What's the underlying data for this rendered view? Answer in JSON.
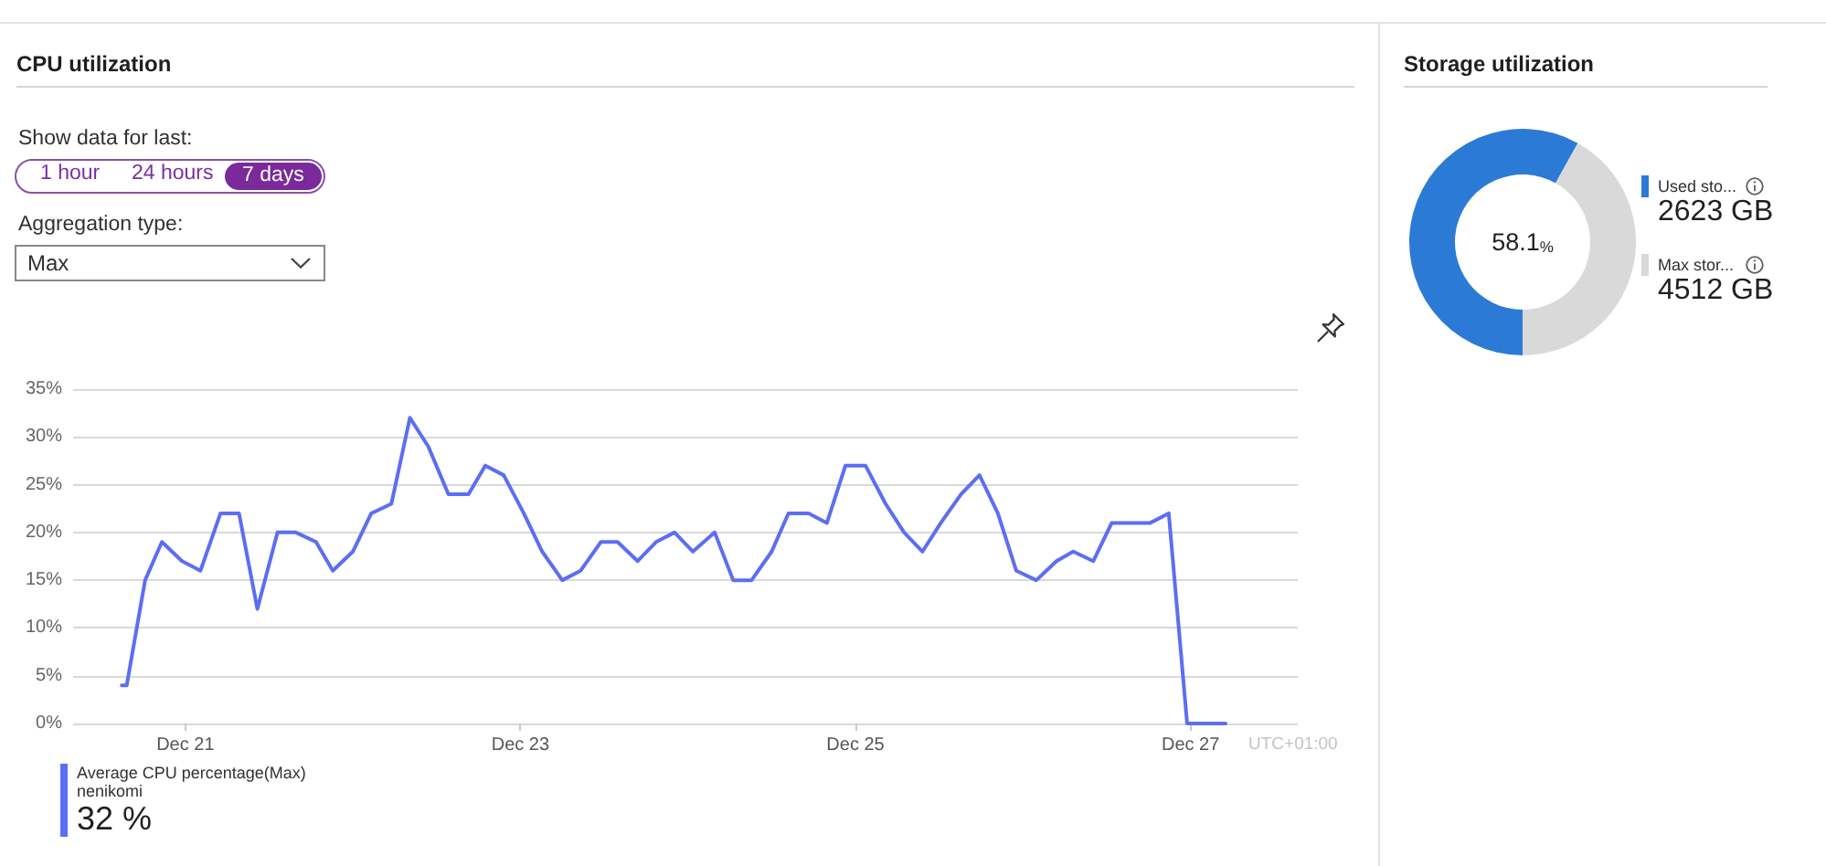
{
  "chart_data": [
    {
      "type": "line",
      "title": "CPU utilization",
      "legend_title": "Average CPU percentage(Max)",
      "x": [
        "--12-20T14:53",
        "--12-20T15:36",
        "--12-20T18:14",
        "--12-20T20:38",
        "--12-20T23:31",
        "--12-21T02:10",
        "--12-21T05:02",
        "--12-21T07:41",
        "--12-21T10:19",
        "--12-21T13:12",
        "--12-21T15:50",
        "--12-21T18:43",
        "--12-21T21:07",
        "--12-22T00:00",
        "--12-22T02:38",
        "--12-22T05:31",
        "--12-22T08:10",
        "--12-22T10:48",
        "--12-22T13:41",
        "--12-22T16:34",
        "--12-22T18:58",
        "--12-22T21:36",
        "--12-23T00:29",
        "--12-23T03:07",
        "--12-23T06:00",
        "--12-23T08:38",
        "--12-23T11:31",
        "--12-23T13:55",
        "--12-23T16:48",
        "--12-23T19:26",
        "--12-23T22:05",
        "--12-24T00:43",
        "--12-24T03:50",
        "--12-24T06:29",
        "--12-24T09:07",
        "--12-24T12:00",
        "--12-24T14:24",
        "--12-24T17:17",
        "--12-24T19:55",
        "--12-24T22:34",
        "--12-25T01:26",
        "--12-25T04:19",
        "--12-25T06:58",
        "--12-25T09:36",
        "--12-25T12:14",
        "--12-25T15:07",
        "--12-25T17:46",
        "--12-25T20:24",
        "--12-25T23:02",
        "--12-26T01:55",
        "--12-26T04:48",
        "--12-26T07:12",
        "--12-26T10:05",
        "--12-26T12:43",
        "--12-26T15:22",
        "--12-26T18:14",
        "--12-26T20:53",
        "--12-26T23:31",
        "--12-27T02:10",
        "--12-27T05:02"
      ],
      "series": [
        {
          "name": "nenikomi",
          "color": "#5c6ef2",
          "values": [
            4,
            4,
            15,
            19,
            17,
            16,
            22,
            22,
            12,
            20,
            20,
            19,
            16,
            18,
            22,
            23,
            32,
            29,
            24,
            24,
            27,
            26,
            22,
            18,
            15,
            16,
            19,
            19,
            17,
            19,
            20,
            18,
            20,
            15,
            15,
            18,
            22,
            22,
            21,
            27,
            27,
            23,
            20,
            18,
            21,
            24,
            26,
            22,
            16,
            15,
            17,
            18,
            17,
            21,
            21,
            21,
            22,
            0,
            0,
            0
          ]
        }
      ],
      "xlim": [
        "--12-20T07:55",
        "--12-27T15:22"
      ],
      "xticks": [
        {
          "value": "--12-21",
          "label": "Dec 21"
        },
        {
          "value": "--12-23",
          "label": "Dec 23"
        },
        {
          "value": "--12-25",
          "label": "Dec 25"
        },
        {
          "value": "--12-27",
          "label": "Dec 27"
        }
      ],
      "ylim": [
        0,
        35
      ],
      "yticks": [
        {
          "value": 0,
          "label": "0%"
        },
        {
          "value": 5,
          "label": "5%"
        },
        {
          "value": 10,
          "label": "10%"
        },
        {
          "value": 15,
          "label": "15%"
        },
        {
          "value": 20,
          "label": "20%"
        },
        {
          "value": 25,
          "label": "25%"
        },
        {
          "value": 30,
          "label": "30%"
        },
        {
          "value": 35,
          "label": "35%"
        }
      ],
      "grid": "y",
      "legend": "bottom left",
      "marker": "none",
      "line_style": "solid",
      "annotations": [
        "Show data for last:",
        "1 hour",
        "24 hours",
        "7 days",
        "Aggregation type:",
        "Max",
        "UTC+01:00",
        "32 %"
      ]
    },
    {
      "type": "donut",
      "title": "Storage utilization",
      "categories": [
        "Used sto...",
        "Max stor..."
      ],
      "values": [
        58.1,
        41.9
      ],
      "colors": [
        "#2b7bd6",
        "#d9d9d9"
      ],
      "legend": "right",
      "annotations": [
        "58.1%",
        "2623 GB",
        "4512 GB"
      ]
    }
  ]
}
